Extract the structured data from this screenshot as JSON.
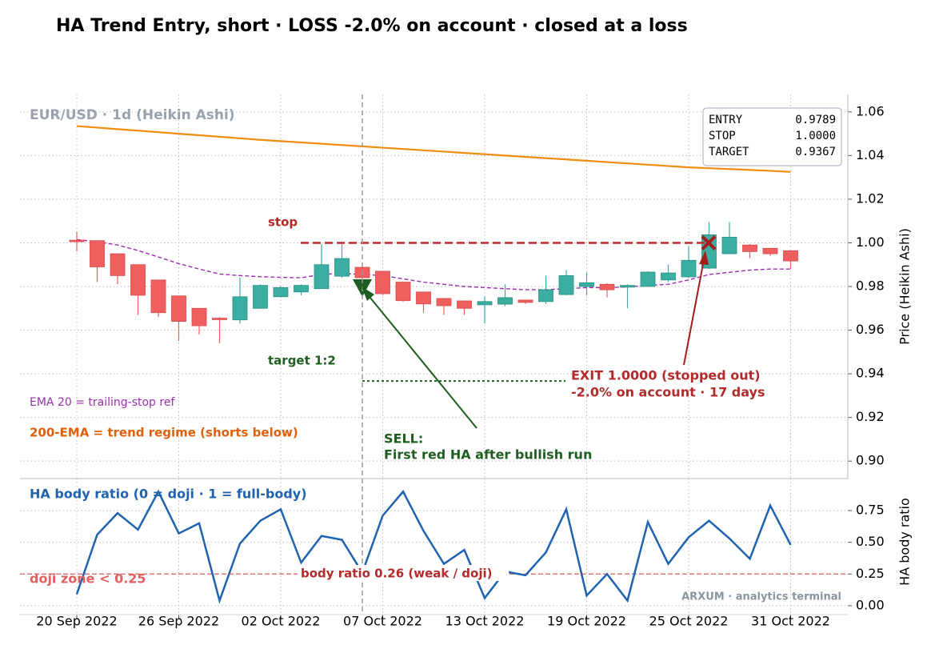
{
  "chart_data": [
    {
      "type": "candlestick",
      "title": "HA Trend Entry, short · LOSS -2.0% on account · closed at a loss",
      "subtitle": "EUR/USD · 1d (Heikin Ashi)",
      "y_label": "Price (Heikin Ashi)",
      "up_color": "#3aaea0",
      "down_color": "#ef5f5f",
      "open": [
        1.0012,
        1.001,
        0.995,
        0.99,
        0.983,
        0.9757,
        0.97,
        0.9655,
        0.9647,
        0.97,
        0.9753,
        0.9775,
        0.979,
        0.9847,
        0.9888,
        0.987,
        0.982,
        0.9775,
        0.9745,
        0.9734,
        0.9716,
        0.9719,
        0.9738,
        0.9731,
        0.9763,
        0.98,
        0.981,
        0.9797,
        0.98,
        0.983,
        0.9844,
        0.9884,
        0.995,
        0.999,
        0.9975,
        0.9964
      ],
      "high": [
        1.005,
        1.001,
        0.995,
        0.99,
        0.983,
        0.9757,
        0.97,
        0.966,
        0.984,
        0.981,
        0.98,
        0.981,
        0.9995,
        0.9995,
        0.9895,
        0.987,
        0.982,
        0.9775,
        0.9745,
        0.9734,
        0.9755,
        0.981,
        0.974,
        0.985,
        0.9875,
        0.9865,
        0.9815,
        0.981,
        0.987,
        0.99,
        0.9985,
        1.0095,
        1.0095,
        0.9995,
        0.9975,
        0.9965
      ],
      "low": [
        0.996,
        0.982,
        0.981,
        0.967,
        0.966,
        0.955,
        0.958,
        0.954,
        0.963,
        0.97,
        0.975,
        0.976,
        0.979,
        0.984,
        0.984,
        0.976,
        0.973,
        0.968,
        0.967,
        0.967,
        0.963,
        0.971,
        0.972,
        0.972,
        0.976,
        0.976,
        0.975,
        0.97,
        0.98,
        0.982,
        0.984,
        0.988,
        0.995,
        0.993,
        0.994,
        0.988
      ],
      "close": [
        1.0005,
        0.989,
        0.985,
        0.976,
        0.968,
        0.964,
        0.962,
        0.9648,
        0.9753,
        0.9805,
        0.9795,
        0.9805,
        0.99,
        0.9928,
        0.984,
        0.9767,
        0.9735,
        0.972,
        0.9712,
        0.97,
        0.9731,
        0.9749,
        0.9727,
        0.9785,
        0.985,
        0.9817,
        0.9785,
        0.9805,
        0.9866,
        0.9862,
        0.992,
        1.0037,
        1.0026,
        0.996,
        0.995,
        0.9917
      ],
      "lines": [
        {
          "color": "#9b2fae",
          "dashed": true,
          "values": [
            1.0015,
            1.0005,
            0.999,
            0.9965,
            0.9935,
            0.9905,
            0.988,
            0.9857,
            0.985,
            0.9845,
            0.9842,
            0.984,
            0.9855,
            0.986,
            0.9855,
            0.985,
            0.9835,
            0.982,
            0.981,
            0.98,
            0.9795,
            0.979,
            0.9785,
            0.9785,
            0.979,
            0.9795,
            0.9795,
            0.9798,
            0.9805,
            0.981,
            0.983,
            0.9855,
            0.9865,
            0.9875,
            0.988,
            0.988
          ]
        },
        {
          "color": "#f28c0f",
          "dashed": false,
          "values": [
            1.0535,
            1.0528,
            1.0521,
            1.0514,
            1.0507,
            1.05,
            1.0493,
            1.0486,
            1.0479,
            1.0472,
            1.0466,
            1.046,
            1.0454,
            1.0448,
            1.0442,
            1.0436,
            1.043,
            1.0424,
            1.0418,
            1.0412,
            1.0406,
            1.04,
            1.0394,
            1.0388,
            1.0382,
            1.0376,
            1.037,
            1.0364,
            1.0358,
            1.0352,
            1.0346,
            1.0342,
            1.0338,
            1.0334,
            1.033,
            1.0325
          ]
        }
      ],
      "levels": [
        {
          "name": "ENTRY",
          "value": 0.9789
        },
        {
          "name": "STOP",
          "value": 1,
          "label": "1.0000"
        },
        {
          "name": "TARGET",
          "value": 0.9367
        }
      ],
      "annotations": {
        "stop": "stop",
        "target": "target 1:2",
        "ema20": "EMA 20 = trailing-stop ref",
        "ema200": "200-EMA = trend regime (shorts below)",
        "sell_1": "SELL:",
        "sell_2": "First red HA after bullish run",
        "exit_1": "EXIT 1.0000 (stopped out)",
        "exit_2": "-2.0% on account  ·  17 days"
      },
      "ylim": [
        0.892,
        1.068
      ],
      "yticks": [
        {
          "value": 0.9,
          "label": "0.90"
        },
        0.92,
        0.94,
        0.96,
        0.98,
        {
          "value": 1,
          "label": "1.00"
        },
        1.02,
        1.04,
        1.06
      ],
      "grid": true
    },
    {
      "type": "line",
      "subtitle": "HA body ratio (0 = doji · 1 = full-body)",
      "y_label": "HA body ratio",
      "categories": [
        "20 Sep 2022",
        null,
        null,
        null,
        null,
        "26 Sep 2022",
        null,
        null,
        null,
        null,
        "02 Oct 2022",
        null,
        null,
        null,
        null,
        "07 Oct 2022",
        null,
        null,
        null,
        null,
        "13 Oct 2022",
        null,
        null,
        null,
        null,
        "19 Oct 2022",
        null,
        null,
        null,
        null,
        "25 Oct 2022",
        null,
        null,
        null,
        null,
        "31 Oct 2022"
      ],
      "series": [
        {
          "color": "#1f63b0",
          "values": [
            0.09,
            0.56,
            0.73,
            0.6,
            0.9,
            0.57,
            0.65,
            0.04,
            0.49,
            0.67,
            0.76,
            0.34,
            0.55,
            0.52,
            0.26,
            0.71,
            0.9,
            0.59,
            0.33,
            0.44,
            0.06,
            0.27,
            0.24,
            0.42,
            0.76,
            0.08,
            0.25,
            0.04,
            0.66,
            0.33,
            0.54,
            0.67,
            0.53,
            0.37,
            0.79,
            0.48
          ]
        }
      ],
      "threshold": 0.25,
      "annotations": {
        "doji": "doji zone < 0.25",
        "weak": "body ratio 0.26 (weak / doji)",
        "watermark": "ARXUM · analytics terminal"
      },
      "ylim": [
        -0.07,
        0.99
      ],
      "yticks": [
        {
          "value": 0,
          "label": "0.00"
        },
        0.25,
        {
          "value": 0.5,
          "label": "0.50"
        },
        0.75
      ],
      "grid": true
    }
  ]
}
